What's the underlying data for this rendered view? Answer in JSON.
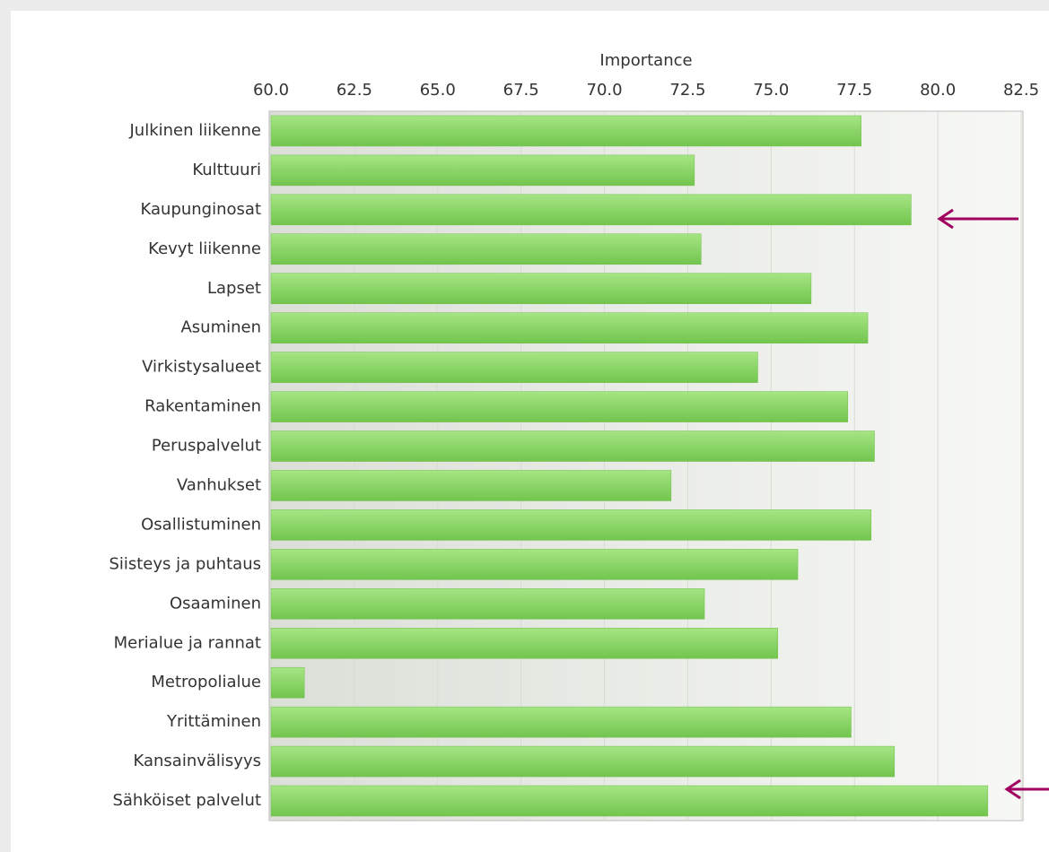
{
  "chart_data": {
    "type": "bar",
    "orientation": "horizontal",
    "x_label": "Importance",
    "categories": [
      "Julkinen liikenne",
      "Kulttuuri",
      "Kaupunginosat",
      "Kevyt liikenne",
      "Lapset",
      "Asuminen",
      "Virkistysalueet",
      "Rakentaminen",
      "Peruspalvelut",
      "Vanhukset",
      "Osallistuminen",
      "Siisteys ja puhtaus",
      "Osaaminen",
      "Merialue ja rannat",
      "Metropolialue",
      "Yrittäminen",
      "Kansainvälisyys",
      "Sähköiset palvelut"
    ],
    "values": [
      77.7,
      72.7,
      79.2,
      72.9,
      76.2,
      77.9,
      74.6,
      77.3,
      78.1,
      72.0,
      78.0,
      75.8,
      73.0,
      75.2,
      61.0,
      77.4,
      78.7,
      81.5
    ],
    "color": "#8fd96a",
    "xlim": [
      60,
      82.5
    ],
    "xticks": [
      {
        "value": 60,
        "label": "60.0"
      },
      62.5,
      {
        "value": 65,
        "label": "65.0"
      },
      67.5,
      {
        "value": 70,
        "label": "70.0"
      },
      72.5,
      {
        "value": 75,
        "label": "75.0"
      },
      77.5,
      {
        "value": 80,
        "label": "80.0"
      },
      82.5
    ],
    "grid": true
  }
}
